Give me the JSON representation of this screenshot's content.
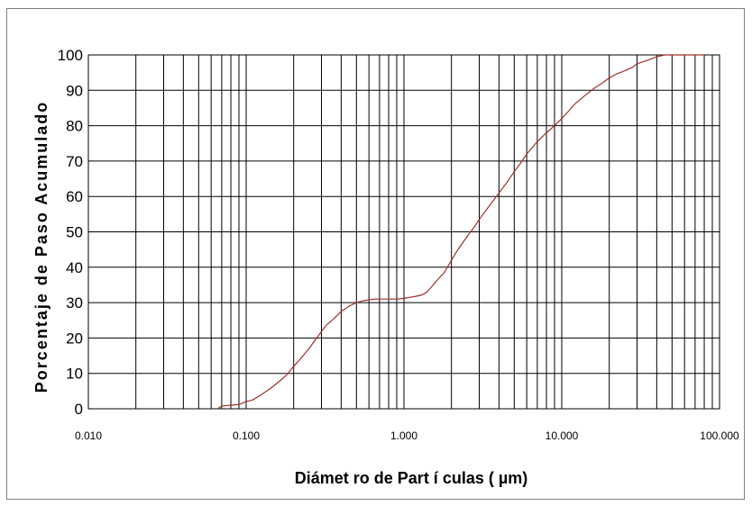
{
  "chart_data": {
    "type": "line",
    "title": "",
    "xlabel": "Diámet ro de Part í culas ( µm)",
    "ylabel": "Porcentaje de Paso Acumulado",
    "xscale": "log",
    "xlim": [
      0.01,
      100
    ],
    "ylim": [
      0,
      100
    ],
    "grid": true,
    "legend": "none",
    "x_tick_labels": [
      "0.010",
      "0.100",
      "1.000",
      "10.000",
      "100.000"
    ],
    "y_tick_labels": [
      "0",
      "10",
      "20",
      "30",
      "40",
      "50",
      "60",
      "70",
      "80",
      "90",
      "100"
    ],
    "series": [
      {
        "color": "#a0302a",
        "x": [
          0.066,
          0.07,
          0.08,
          0.09,
          0.1,
          0.11,
          0.12,
          0.14,
          0.16,
          0.18,
          0.2,
          0.22,
          0.25,
          0.28,
          0.32,
          0.36,
          0.4,
          0.45,
          0.5,
          0.55,
          0.6,
          0.65,
          0.7,
          0.8,
          0.9,
          1.0,
          1.1,
          1.2,
          1.3,
          1.4,
          1.5,
          1.6,
          1.8,
          2.0,
          2.2,
          2.5,
          2.8,
          3.0,
          3.5,
          4.0,
          4.5,
          5.0,
          5.5,
          6.0,
          7.0,
          8.0,
          9.0,
          10.0,
          11.0,
          12.0,
          14.0,
          16.0,
          18.0,
          20.0,
          22.0,
          25.0,
          28.0,
          30.0,
          35.0,
          40.0,
          45.0,
          50.0,
          60.0,
          80.0
        ],
        "y": [
          0,
          0.8,
          1.0,
          1.2,
          2.0,
          2.5,
          3.5,
          5.5,
          7.5,
          9.5,
          12.0,
          14.0,
          17.0,
          20.0,
          23.5,
          25.5,
          27.5,
          29.0,
          30.0,
          30.5,
          30.8,
          31.0,
          31.0,
          31.0,
          31.0,
          31.2,
          31.5,
          31.8,
          32.2,
          33.0,
          34.5,
          36.0,
          38.5,
          42.0,
          45.0,
          48.5,
          51.5,
          53.5,
          57.5,
          61.0,
          64.0,
          67.0,
          69.5,
          72.0,
          75.5,
          78.0,
          80.0,
          82.0,
          84.0,
          86.0,
          88.5,
          90.5,
          92.0,
          93.5,
          94.5,
          95.5,
          96.5,
          97.5,
          98.5,
          99.5,
          100,
          100,
          100,
          100
        ]
      }
    ]
  }
}
